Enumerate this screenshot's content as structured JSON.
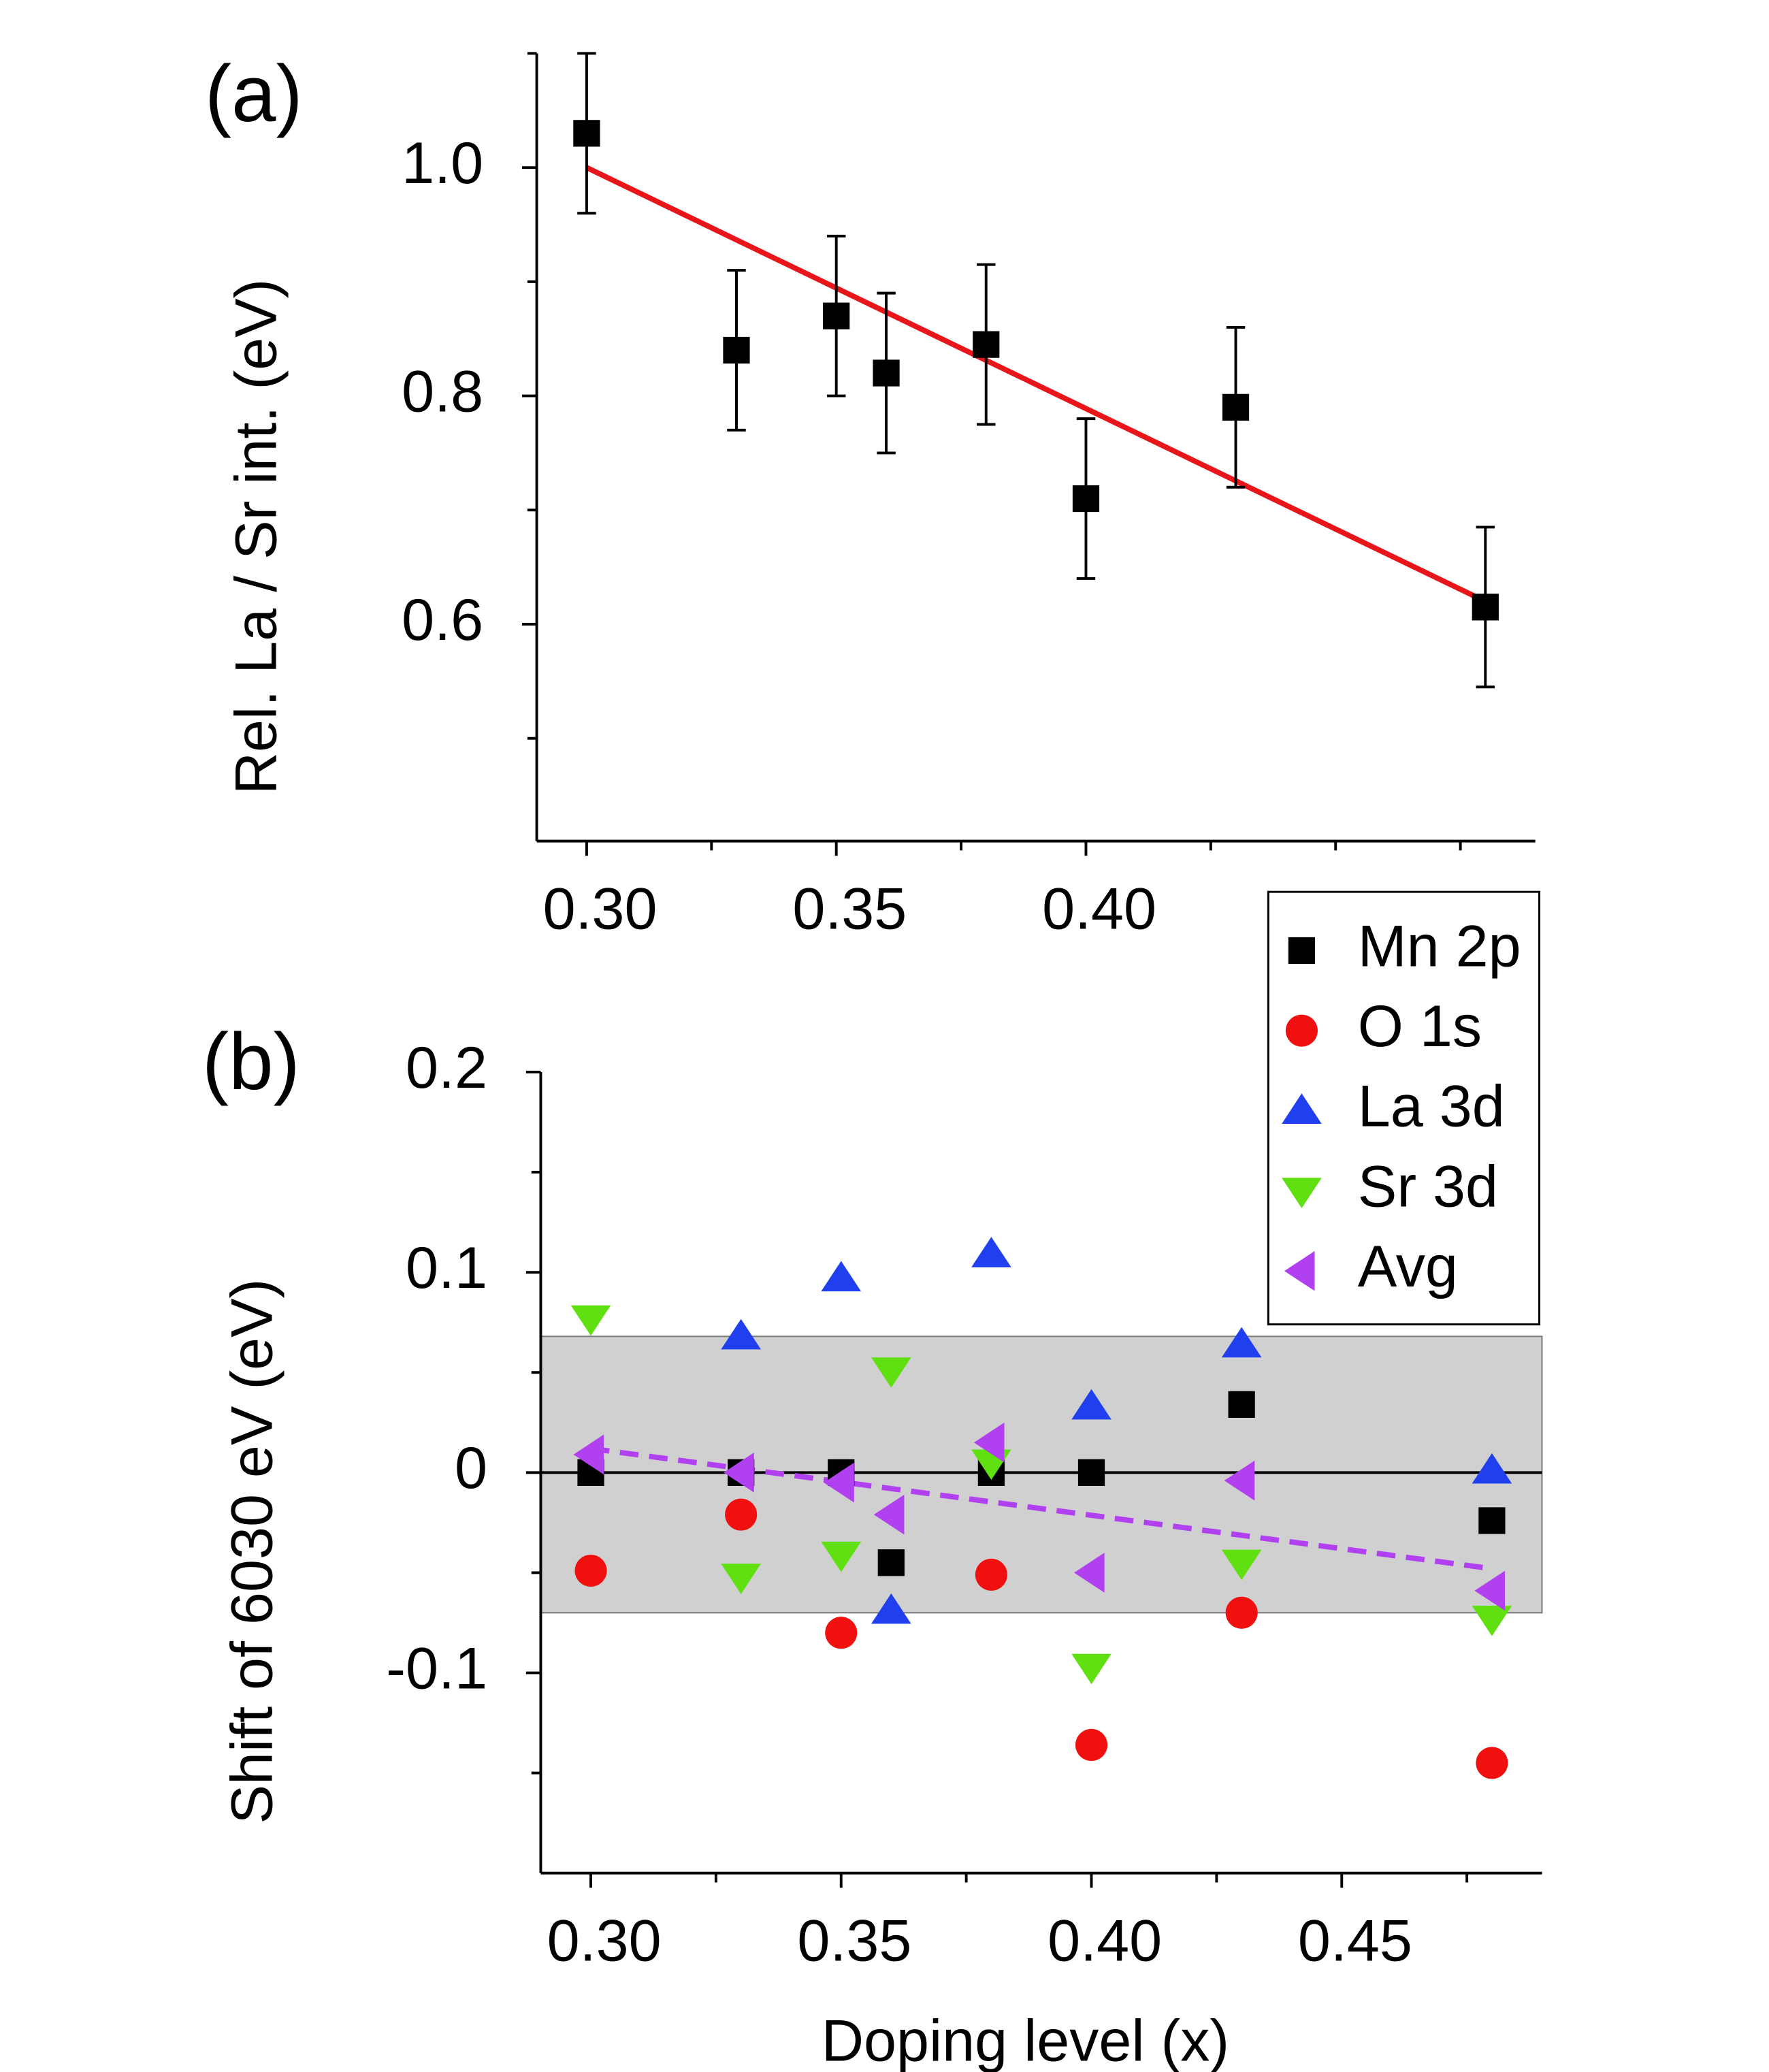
{
  "chart_data": [
    {
      "type": "scatter",
      "panel_label": "(a)",
      "ylabel": "Rel. La / Sr int. (eV)",
      "xlim": [
        0.29,
        0.49
      ],
      "ylim": [
        0.41,
        1.1
      ],
      "xticks": [
        {
          "value": 0.3,
          "label": "0.30"
        },
        {
          "value": 0.35,
          "label": "0.35"
        },
        {
          "value": 0.4,
          "label": "0.40"
        }
      ],
      "xminor_ticks": [
        0.325,
        0.375,
        0.425,
        0.45,
        0.475
      ],
      "yticks": [
        {
          "value": 1.0,
          "label": "1.0"
        },
        0.8,
        0.6
      ],
      "yminor_ticks": [
        0.5,
        0.7,
        0.9,
        1.1
      ],
      "x": [
        0.3,
        0.33,
        0.35,
        0.36,
        0.38,
        0.4,
        0.43,
        0.48
      ],
      "series": [
        {
          "color": "#000000",
          "marker": "square",
          "values": [
            1.03,
            0.84,
            0.87,
            0.82,
            0.845,
            0.71,
            0.79,
            0.615
          ],
          "errors": [
            0.07,
            0.07,
            0.07,
            0.07,
            0.07,
            0.07,
            0.07,
            0.07
          ]
        }
      ],
      "fit": {
        "x": [
          0.3,
          0.48
        ],
        "values": [
          1.0,
          0.62
        ],
        "color": "#e8161b",
        "dashed": false
      }
    },
    {
      "type": "scatter",
      "panel_label": "(b)",
      "ylabel": "Shift of 6030 eV (eV)",
      "xlabel": "Doping level (x)",
      "xlim": [
        0.29,
        0.49
      ],
      "ylim": [
        -0.2,
        0.2
      ],
      "xticks": [
        {
          "value": 0.3,
          "label": "0.30"
        },
        {
          "value": 0.35,
          "label": "0.35"
        },
        {
          "value": 0.4,
          "label": "0.40"
        },
        {
          "value": 0.45,
          "label": "0.45"
        }
      ],
      "xminor_ticks": [
        0.325,
        0.375,
        0.425,
        0.475
      ],
      "yticks": [
        0.2,
        0.1,
        0,
        -0.1
      ],
      "yminor_ticks": [
        0.15,
        0.05,
        -0.05,
        -0.15
      ],
      "band": [
        -0.07,
        0.068
      ],
      "band_color": "#d0d0d0",
      "hline": 0,
      "x": [
        0.3,
        0.33,
        0.35,
        0.36,
        0.38,
        0.4,
        0.43,
        0.48
      ],
      "series": [
        {
          "name": "Mn 2p",
          "color": "#000000",
          "marker": "square",
          "values": [
            0,
            0,
            0,
            -0.045,
            0,
            0,
            0.034,
            -0.024
          ]
        },
        {
          "name": "O 1s",
          "color": "#f01010",
          "marker": "circle",
          "values": [
            -0.049,
            -0.021,
            -0.08,
            null,
            -0.051,
            -0.136,
            -0.07,
            -0.145
          ]
        },
        {
          "name": "La 3d",
          "color": "#2040f0",
          "marker": "triangle-up",
          "values": [
            null,
            0.068,
            0.097,
            -0.069,
            0.109,
            0.033,
            0.064,
            0.001
          ]
        },
        {
          "name": "Sr 3d",
          "color": "#60e010",
          "marker": "triangle-down",
          "values": [
            0.077,
            -0.052,
            -0.041,
            0.051,
            0.005,
            -0.097,
            -0.045,
            -0.073
          ]
        },
        {
          "name": "Avg",
          "color": "#b040f0",
          "marker": "triangle-left",
          "values": [
            0.009,
            0,
            -0.005,
            -0.021,
            0.015,
            -0.05,
            -0.004,
            -0.059
          ]
        }
      ],
      "fit": {
        "x": [
          0.3,
          0.48
        ],
        "values": [
          0.012,
          -0.048
        ],
        "color": "#b040f0",
        "dashed": true
      },
      "legend": "top-right"
    }
  ]
}
